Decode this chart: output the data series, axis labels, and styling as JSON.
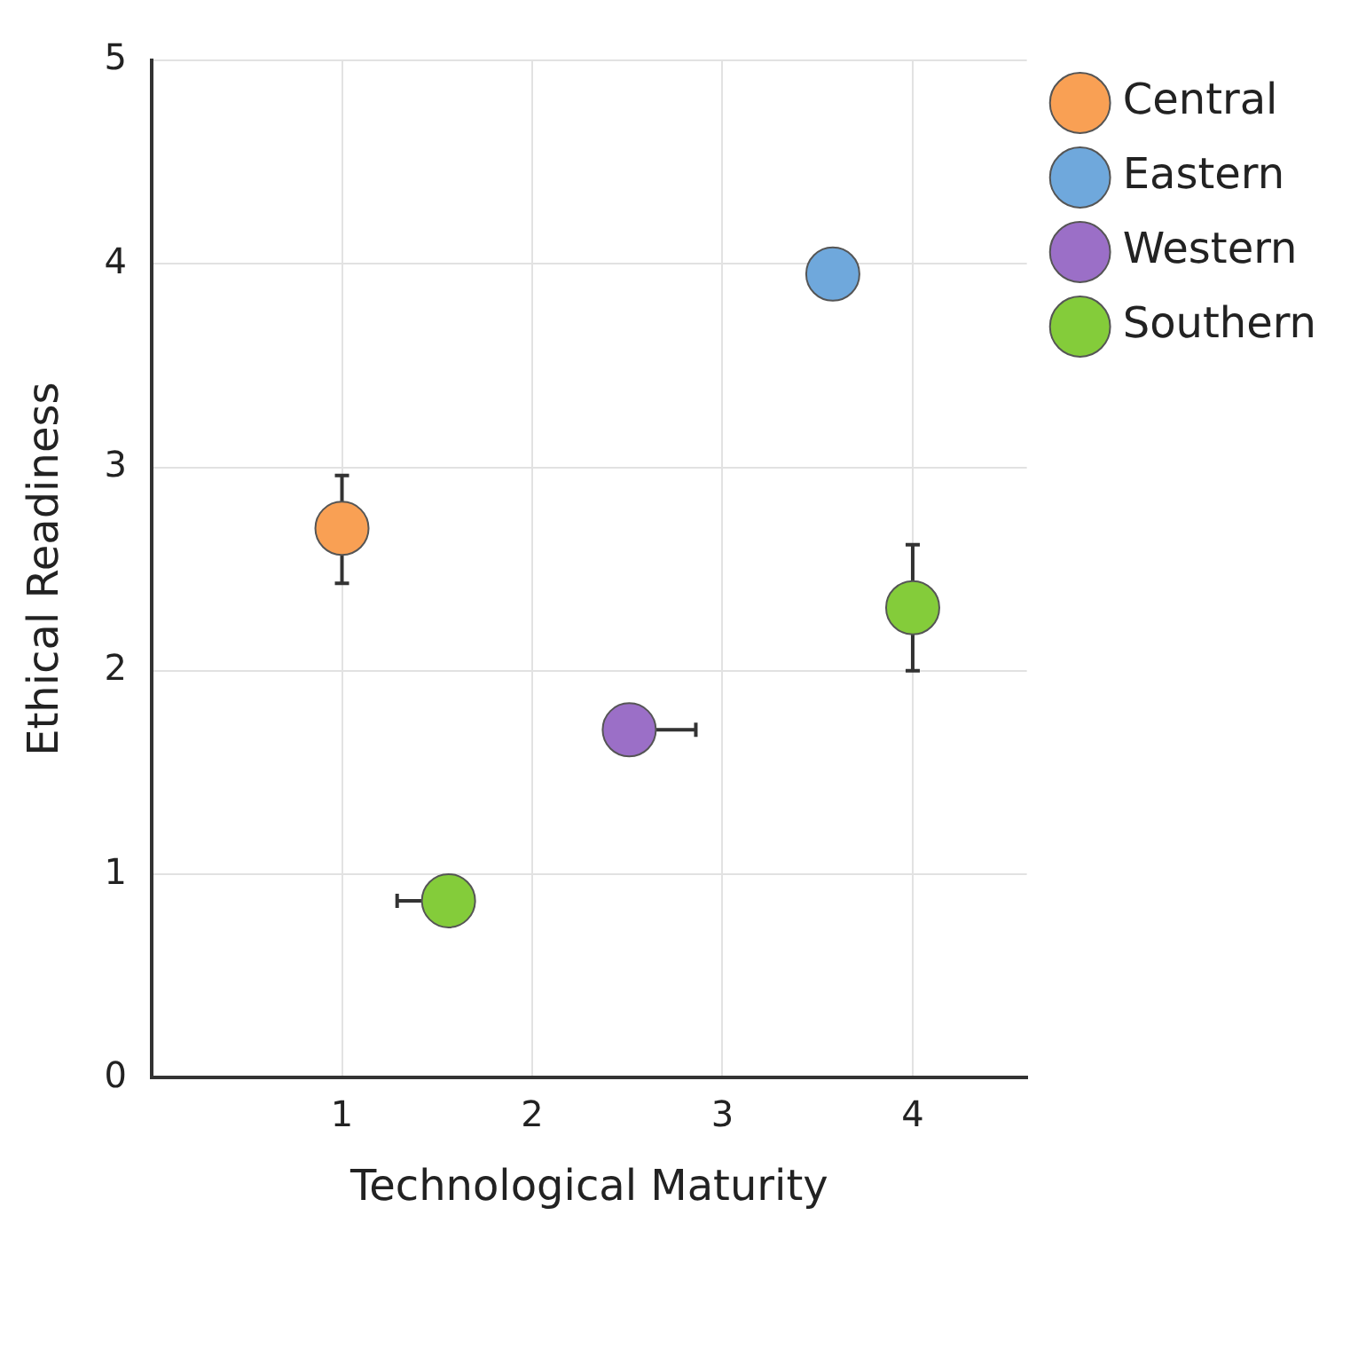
{
  "chart_data": {
    "type": "scatter",
    "xlabel": "Technological Maturity",
    "ylabel": "Ethical Readiness",
    "xlim": [
      0,
      4.6
    ],
    "xticks": [
      1,
      2,
      3,
      4
    ],
    "ylim": [
      0,
      5
    ],
    "yticks": [
      0,
      1,
      2,
      3,
      4,
      5
    ],
    "grid": true,
    "legend": "top right",
    "marker": "circle",
    "series": [
      {
        "name": "Central",
        "color": "#f9a054",
        "x": [
          1
        ],
        "values": [
          2.7
        ],
        "errors": [
          [
            2.43,
            2.96
          ]
        ]
      },
      {
        "name": "Eastern",
        "color": "#6fa8dc",
        "x": [
          3.58
        ],
        "values": [
          3.95
        ]
      },
      {
        "name": "Western",
        "color": "#9b6fc7",
        "x": [
          2.51
        ],
        "values": [
          1.71
        ],
        "xerrors": [
          [
            2.51,
            2.86
          ]
        ]
      },
      {
        "name": "Southern",
        "color": "#84cc3a",
        "x": [
          1.56,
          4
        ],
        "values": [
          0.87,
          2.31
        ],
        "xerrors": [
          [
            1.29,
            1.56
          ],
          null
        ],
        "errors": [
          null,
          [
            2.0,
            2.62
          ]
        ]
      }
    ]
  }
}
